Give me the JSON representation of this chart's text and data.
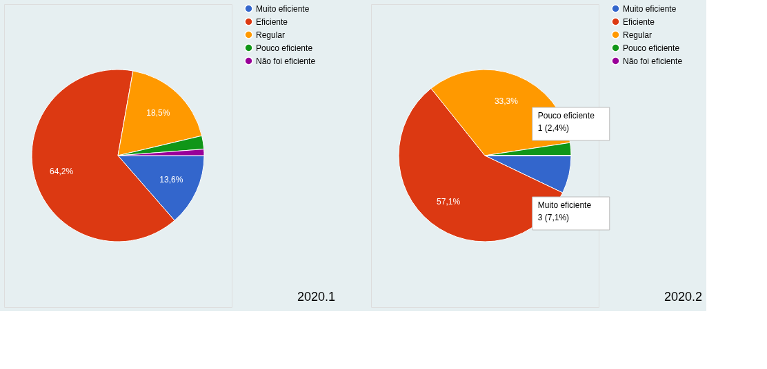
{
  "chart_data": [
    {
      "type": "pie",
      "categories": [
        "Muito eficiente",
        "Eficiente",
        "Regular",
        "Pouco eficiente",
        "Não foi eficiente"
      ],
      "values": [
        13.6,
        64.2,
        18.5,
        2.5,
        1.2
      ],
      "colors": [
        "#3366cc",
        "#dc3912",
        "#ff9900",
        "#109618",
        "#990099"
      ],
      "value_labels": [
        "13,6%",
        "64,2%",
        "18,5%",
        null,
        null
      ],
      "legend": "right",
      "annotations": [
        "2020.1"
      ]
    },
    {
      "type": "pie",
      "categories": [
        "Muito eficiente",
        "Eficiente",
        "Regular",
        "Pouco eficiente",
        "Não foi eficiente"
      ],
      "values": [
        7.1,
        57.1,
        33.3,
        2.4,
        0
      ],
      "colors": [
        "#3366cc",
        "#dc3912",
        "#ff9900",
        "#109618",
        "#990099"
      ],
      "value_labels": [
        null,
        "57,1%",
        "33,3%",
        null,
        null
      ],
      "legend": "right",
      "annotations": [
        "Pouco eficiente\n1 (2,4%)",
        "Muito eficiente\n3 (7,1%)",
        "2020.2"
      ]
    }
  ]
}
